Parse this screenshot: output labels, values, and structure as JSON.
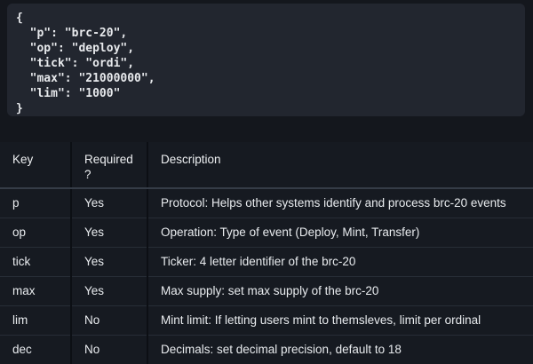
{
  "code_block": {
    "language": "json",
    "lines": [
      "{",
      "  \"p\": \"brc-20\",",
      "  \"op\": \"deploy\",",
      "  \"tick\": \"ordi\",",
      "  \"max\": \"21000000\",",
      "  \"lim\": \"1000\"",
      "}"
    ]
  },
  "table": {
    "columns": {
      "key": "Key",
      "required": "Required ?",
      "description": "Description"
    },
    "rows": [
      {
        "key": "p",
        "required": "Yes",
        "description": "Protocol: Helps other systems identify and process brc-20 events"
      },
      {
        "key": "op",
        "required": "Yes",
        "description": "Operation: Type of event (Deploy, Mint, Transfer)"
      },
      {
        "key": "tick",
        "required": "Yes",
        "description": "Ticker: 4 letter identifier of the brc-20"
      },
      {
        "key": "max",
        "required": "Yes",
        "description": "Max supply: set max supply of the brc-20"
      },
      {
        "key": "lim",
        "required": "No",
        "description": "Mint limit: If letting users mint to themsleves, limit per ordinal"
      },
      {
        "key": "dec",
        "required": "No",
        "description": "Decimals: set decimal precision, default to 18"
      }
    ]
  },
  "colors": {
    "page_background": "#14171d",
    "code_background": "#22262f",
    "table_background": "#161a21",
    "text": "#e9ecef",
    "header_divider": "#353c47",
    "row_divider": "#272d36",
    "column_gap": "#0c0f14"
  }
}
